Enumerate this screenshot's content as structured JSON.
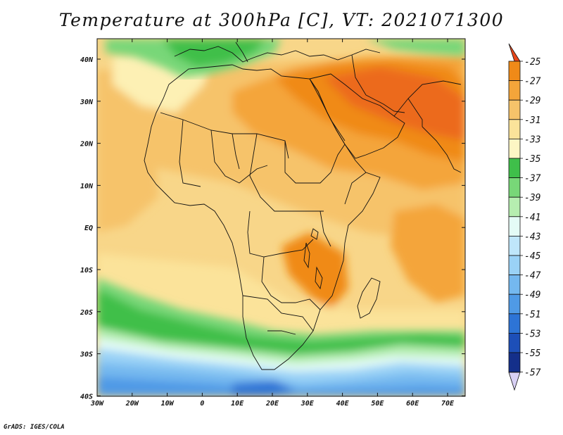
{
  "title": "Temperature at 300hPa [C], VT: 2021071300",
  "credit": "GrADS: IGES/COLA",
  "map": {
    "lon_ticks": [
      "30W",
      "20W",
      "10W",
      "0",
      "10E",
      "20E",
      "30E",
      "40E",
      "50E",
      "60E",
      "70E"
    ],
    "lat_ticks": [
      "40N",
      "30N",
      "20N",
      "10N",
      "EQ",
      "10S",
      "20S",
      "30S",
      "40S"
    ],
    "lon_range": [
      -30,
      75
    ],
    "lat_range": [
      -40,
      45
    ]
  },
  "colorbar": {
    "labels": [
      "-25",
      "-27",
      "-29",
      "-31",
      "-33",
      "-35",
      "-37",
      "-39",
      "-41",
      "-43",
      "-45",
      "-47",
      "-49",
      "-51",
      "-53",
      "-55",
      "-57"
    ],
    "colors": [
      "#f08a18",
      "#f4a53a",
      "#f6c36a",
      "#fbe39a",
      "#fdf6c4",
      "#3fbf4a",
      "#78d778",
      "#b6eeb0",
      "#e4fbf6",
      "#bfe6fa",
      "#9ad2f6",
      "#74b8ef",
      "#4f9ae6",
      "#2d74d6",
      "#1d4fb8",
      "#142f8a"
    ],
    "top_arrow_color": "#e8461a",
    "bottom_arrow_color": "#d8d0f4"
  }
}
